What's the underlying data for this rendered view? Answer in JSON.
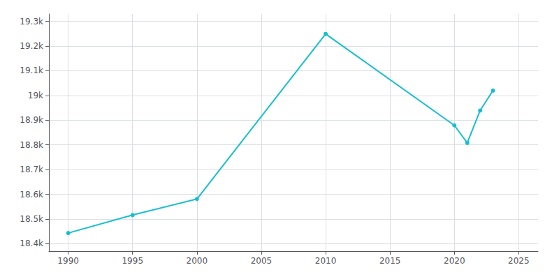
{
  "chart_data": {
    "type": "line",
    "x": [
      1990,
      1995,
      2000,
      2010,
      2020,
      2021,
      2022,
      2023
    ],
    "values": [
      18443,
      18516,
      18581,
      19249,
      18879,
      18808,
      18939,
      19020
    ],
    "color": "#17becf",
    "marker": "circle",
    "xlim": [
      1988.5,
      2026.5
    ],
    "xticks": [
      1990,
      1995,
      2000,
      2005,
      2010,
      2015,
      2020,
      2025
    ],
    "ylim": [
      18370,
      19330
    ],
    "yticks": [
      {
        "value": 18400,
        "label": "18.4k"
      },
      {
        "value": 18500,
        "label": "18.5k"
      },
      {
        "value": 18600,
        "label": "18.6k"
      },
      {
        "value": 18700,
        "label": "18.7k"
      },
      {
        "value": 18800,
        "label": "18.8k"
      },
      {
        "value": 18900,
        "label": "18.9k"
      },
      {
        "value": 19000,
        "label": "19k"
      },
      {
        "value": 19100,
        "label": "19.1k"
      },
      {
        "value": 19200,
        "label": "19.2k"
      },
      {
        "value": 19300,
        "label": "19.3k"
      }
    ],
    "grid": true
  }
}
